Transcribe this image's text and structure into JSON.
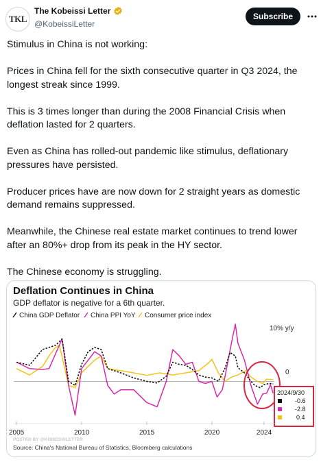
{
  "header": {
    "avatar_text": "TKL",
    "display_name": "The Kobeissi Letter",
    "handle": "@KobeissiLetter",
    "subscribe_label": "Subscribe",
    "verified_color": "#e8b10d"
  },
  "tweet": {
    "paragraphs": [
      "Stimulus in China is not working:",
      "Prices in China fell for the sixth consecutive quarter in Q3 2024, the longest streak since 1999.",
      "This is 3 times longer than during the 2008 Financial Crisis when deflation lasted for 2 quarters.",
      "Even as China has rolled-out pandemic like stimulus, deflationary pressures have persisted.",
      "Producer prices have are now down for 2 straight years as domestic demand remains suppressed.",
      "Meanwhile, the Chinese real estate market continues to trend lower after an 80%+ drop from its peak in the HY sector.",
      "The Chinese economy is struggling."
    ]
  },
  "chart_data": {
    "type": "line",
    "title": "Deflation Continues in China",
    "subtitle": "GDP deflator is negative for a 6th quarter.",
    "unit_label": "10% y/y",
    "zero_label": "0",
    "x_ticks": [
      "2005",
      "2010",
      "2015",
      "2020",
      "2024"
    ],
    "xlim": [
      2005,
      2024.9
    ],
    "ylim": [
      -9,
      13
    ],
    "source": "Source: China's National Bureau of Statistics, Bloomberg calculations",
    "watermark": "POSTED BY @KOBEISSILETTER",
    "latest_box": {
      "date": "2024/9/30",
      "values": [
        "-0.6",
        "-2.8",
        "0.4"
      ]
    },
    "series": [
      {
        "name": "China GDP Deflator",
        "color": "#111111",
        "style": "dashed",
        "points": [
          [
            2005,
            4.5
          ],
          [
            2006,
            3.8
          ],
          [
            2007,
            7.5
          ],
          [
            2008,
            8.5
          ],
          [
            2008.5,
            10
          ],
          [
            2009,
            0
          ],
          [
            2009.5,
            -1
          ],
          [
            2010,
            4
          ],
          [
            2010.5,
            7
          ],
          [
            2011,
            8
          ],
          [
            2011.5,
            7.5
          ],
          [
            2012,
            3
          ],
          [
            2013,
            2
          ],
          [
            2014,
            0.8
          ],
          [
            2015,
            0
          ],
          [
            2015.8,
            -0.4
          ],
          [
            2016.5,
            1.2
          ],
          [
            2017,
            4.5
          ],
          [
            2017.5,
            4
          ],
          [
            2018,
            3.8
          ],
          [
            2018.5,
            2.8
          ],
          [
            2019,
            1.5
          ],
          [
            2019.5,
            1
          ],
          [
            2020,
            0.8
          ],
          [
            2020.5,
            0
          ],
          [
            2021,
            3
          ],
          [
            2021.4,
            6.8
          ],
          [
            2021.8,
            6
          ],
          [
            2022,
            3.2
          ],
          [
            2022.5,
            2
          ],
          [
            2023,
            0
          ],
          [
            2023.3,
            -1
          ],
          [
            2023.7,
            -1.5
          ],
          [
            2024,
            -0.8
          ],
          [
            2024.4,
            -0.5
          ],
          [
            2024.7,
            -0.6
          ]
        ]
      },
      {
        "name": "China PPI YoY",
        "color": "#d62aa8",
        "style": "solid",
        "points": [
          [
            2005,
            4.5
          ],
          [
            2006,
            3
          ],
          [
            2007,
            2.8
          ],
          [
            2007.5,
            3
          ],
          [
            2008,
            6.5
          ],
          [
            2008.5,
            10
          ],
          [
            2009,
            -1
          ],
          [
            2009.5,
            -8
          ],
          [
            2010,
            3
          ],
          [
            2010.5,
            5
          ],
          [
            2011,
            7
          ],
          [
            2011.5,
            6
          ],
          [
            2012,
            -1
          ],
          [
            2012.5,
            -3
          ],
          [
            2013,
            -2
          ],
          [
            2014,
            -2
          ],
          [
            2015,
            -5
          ],
          [
            2015.8,
            -6
          ],
          [
            2016.5,
            0
          ],
          [
            2017,
            7.5
          ],
          [
            2017.5,
            6
          ],
          [
            2018,
            4
          ],
          [
            2018.5,
            4.5
          ],
          [
            2019,
            0
          ],
          [
            2019.5,
            -0.5
          ],
          [
            2020,
            0
          ],
          [
            2020.4,
            -3.7
          ],
          [
            2020.8,
            -2
          ],
          [
            2021,
            1
          ],
          [
            2021.5,
            9
          ],
          [
            2021.8,
            13.5
          ],
          [
            2022,
            9
          ],
          [
            2022.5,
            5
          ],
          [
            2023,
            -1
          ],
          [
            2023.5,
            -5.4
          ],
          [
            2023.9,
            -3
          ],
          [
            2024.2,
            -2.8
          ],
          [
            2024.5,
            -0.8
          ],
          [
            2024.7,
            -2.8
          ]
        ]
      },
      {
        "name": "Consumer price index",
        "color": "#f4c31a",
        "style": "solid",
        "points": [
          [
            2005,
            3
          ],
          [
            2006,
            1.5
          ],
          [
            2007,
            3.5
          ],
          [
            2007.5,
            6
          ],
          [
            2008,
            8
          ],
          [
            2008.3,
            8.5
          ],
          [
            2009,
            -1
          ],
          [
            2009.5,
            -1.5
          ],
          [
            2010,
            2
          ],
          [
            2010.5,
            3.5
          ],
          [
            2011,
            5
          ],
          [
            2011.5,
            6
          ],
          [
            2012,
            3
          ],
          [
            2013,
            2.5
          ],
          [
            2014,
            2
          ],
          [
            2015,
            1.4
          ],
          [
            2016,
            2
          ],
          [
            2017,
            1.5
          ],
          [
            2018,
            2
          ],
          [
            2019,
            2.5
          ],
          [
            2019.8,
            4.5
          ],
          [
            2020,
            5.2
          ],
          [
            2020.5,
            2
          ],
          [
            2021,
            0
          ],
          [
            2021.5,
            1
          ],
          [
            2022,
            1.5
          ],
          [
            2022.6,
            2.5
          ],
          [
            2023,
            1
          ],
          [
            2023.5,
            0
          ],
          [
            2023.9,
            -0.5
          ],
          [
            2024.2,
            0.5
          ],
          [
            2024.7,
            0.4
          ]
        ]
      }
    ]
  }
}
